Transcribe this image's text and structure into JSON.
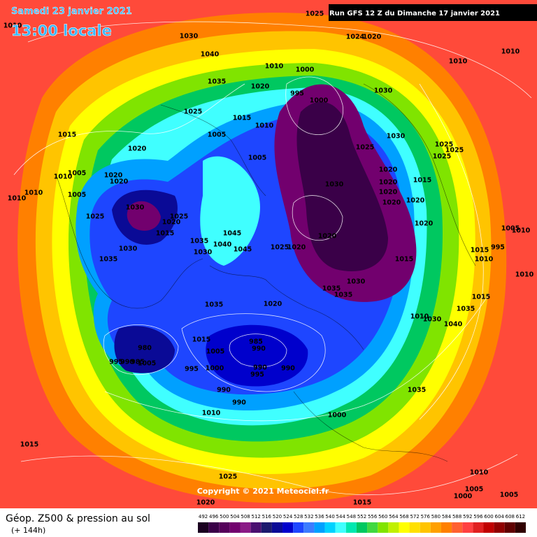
{
  "header": {
    "date": "Samedi 23 janvier 2021",
    "time": "13:00 locale",
    "run": "Run GFS 12 Z du Dimanche 17 janvier 2021"
  },
  "map": {
    "copyright": "Copyright © 2021 Meteociel.fr",
    "pressure_labels": [
      "1025",
      "1010",
      "1030",
      "1024",
      "1020",
      "1010",
      "1010",
      "1040",
      "1010",
      "1000",
      "1035",
      "1020",
      "995",
      "1030",
      "1000",
      "1025",
      "1015",
      "1010",
      "1030",
      "1015",
      "1005",
      "1025",
      "1025",
      "1025",
      "1025",
      "1020",
      "1005",
      "1020",
      "1010",
      "1005",
      "1020",
      "1020",
      "1015",
      "1030",
      "1020",
      "1010",
      "1005",
      "1020",
      "1020",
      "1020",
      "1030",
      "1025",
      "1025",
      "1020",
      "1020",
      "1015",
      "1045",
      "1020",
      "1035",
      "1040",
      "1025",
      "1020",
      "1045",
      "1030",
      "1030",
      "1015",
      "995",
      "1005",
      "1035",
      "1010",
      "1015",
      "1010",
      "1030",
      "1035",
      "1035",
      "1015",
      "1035",
      "1020",
      "1035",
      "1010",
      "1030",
      "1040",
      "1015",
      "985",
      "990",
      "980",
      "1005",
      "995",
      "990",
      "985",
      "1005",
      "1000",
      "995",
      "990",
      "990",
      "995",
      "990",
      "1035",
      "990",
      "1010",
      "1000",
      "1015",
      "1010",
      "1025",
      "1005",
      "1005",
      "1000",
      "1020",
      "1015",
      "1010",
      "1010"
    ]
  },
  "footer": {
    "title": "Géop. Z500 & pression au sol",
    "lead": "(+ 144h)"
  },
  "colorbar": {
    "ticks": [
      492,
      496,
      500,
      504,
      508,
      512,
      516,
      520,
      524,
      528,
      532,
      536,
      540,
      544,
      548,
      552,
      556,
      560,
      564,
      568,
      572,
      576,
      580,
      584,
      588,
      592,
      596,
      600,
      604,
      608,
      612
    ],
    "colors": [
      "#1a0020",
      "#3a0048",
      "#55005a",
      "#72006e",
      "#8a1a86",
      "#4a1070",
      "#1c1a6e",
      "#0a0a96",
      "#0000cc",
      "#1e46ff",
      "#3c7cff",
      "#00a0ff",
      "#00d2ff",
      "#40ffff",
      "#00e8b0",
      "#00c860",
      "#40d840",
      "#80e400",
      "#c0f000",
      "#ffff00",
      "#ffe000",
      "#ffc400",
      "#ffa000",
      "#ff8000",
      "#ff6030",
      "#ff4040",
      "#e02020",
      "#c00000",
      "#900000",
      "#600000",
      "#300000"
    ]
  }
}
